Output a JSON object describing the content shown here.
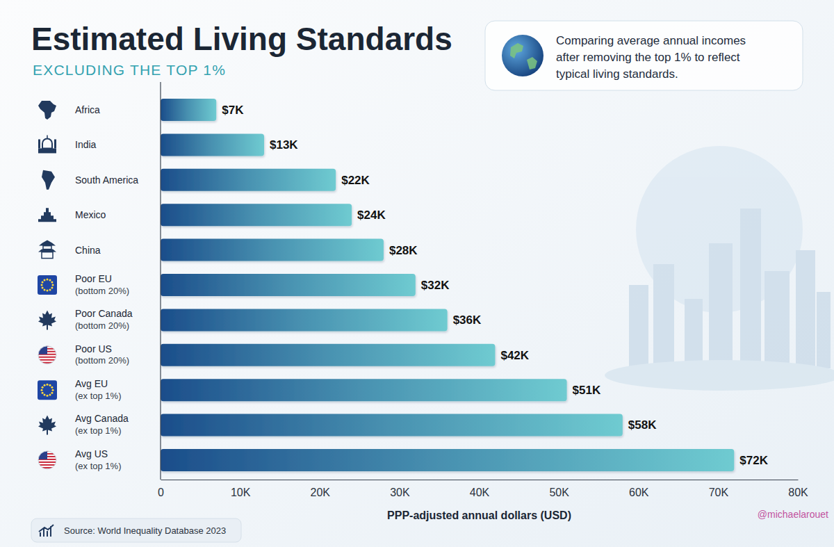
{
  "chart_data": {
    "type": "bar",
    "orientation": "horizontal",
    "title": "Estimated Living Standards",
    "subtitle": "EXCLUDING THE TOP 1%",
    "annotations": [
      "Comparing average annual incomes after removing the top 1% to reflect typical living standards."
    ],
    "xlabel": "PPP-adjusted annual dollars (USD)",
    "source": "Source: World Inequality Database 2023",
    "credit": "@michaelarouet",
    "categories": [
      "Africa",
      "India",
      "South America",
      "Mexico",
      "China",
      "Poor EU (bottom 20%)",
      "Poor Canada (bottom 20%)",
      "Poor US (bottom 20%)",
      "Avg EU (ex top 1%)",
      "Avg Canada (ex top 1%)",
      "Avg US (ex top 1%)"
    ],
    "values": [
      7000,
      13000,
      22000,
      24000,
      28000,
      32000,
      36000,
      42000,
      51000,
      58000,
      72000
    ],
    "value_labels": [
      "$7K",
      "$13K",
      "$22K",
      "$24K",
      "$28K",
      "$32K",
      "$36K",
      "$42K",
      "$51K",
      "$58K",
      "$72K"
    ],
    "data_labels": true,
    "color": "#1b4d8a",
    "grid": false,
    "xlim": [
      0,
      80000
    ],
    "xticks": [
      0,
      {
        "value": 10000,
        "label": "10K"
      },
      {
        "value": 20000,
        "label": "20K"
      },
      {
        "value": 30000,
        "label": "30K"
      },
      {
        "value": 40000,
        "label": "40K"
      },
      {
        "value": 50000,
        "label": "50K"
      },
      {
        "value": 60000,
        "label": "60K"
      },
      {
        "value": 70000,
        "label": "70K"
      },
      {
        "value": 80000,
        "label": "80K"
      }
    ]
  }
}
